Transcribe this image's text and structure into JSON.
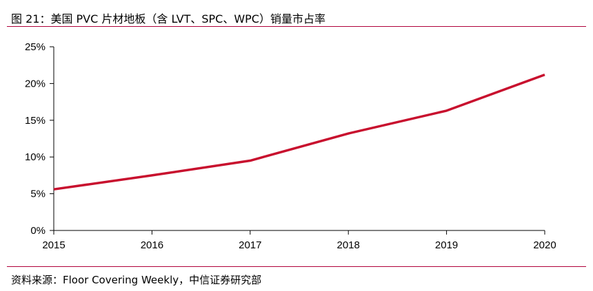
{
  "title": "图 21：美国 PVC 片材地板（含 LVT、SPC、WPC）销量市占率",
  "source": "资料来源：Floor Covering Weekly，中信证券研究部",
  "colors": {
    "line": "#c8102e",
    "rule": "#b0003a",
    "axis": "#000000"
  },
  "chart_data": {
    "type": "line",
    "x": [
      "2015",
      "2016",
      "2017",
      "2018",
      "2019",
      "2020"
    ],
    "series": [
      {
        "values": [
          5.6,
          7.5,
          9.5,
          13.2,
          16.3,
          21.2
        ]
      }
    ],
    "ylim": [
      0,
      25
    ],
    "yticks": [
      0,
      5,
      10,
      15,
      20,
      25
    ],
    "ytick_labels": [
      "0%",
      "5%",
      "10%",
      "15%",
      "20%",
      "25%"
    ],
    "grid": false,
    "legend": "none"
  }
}
